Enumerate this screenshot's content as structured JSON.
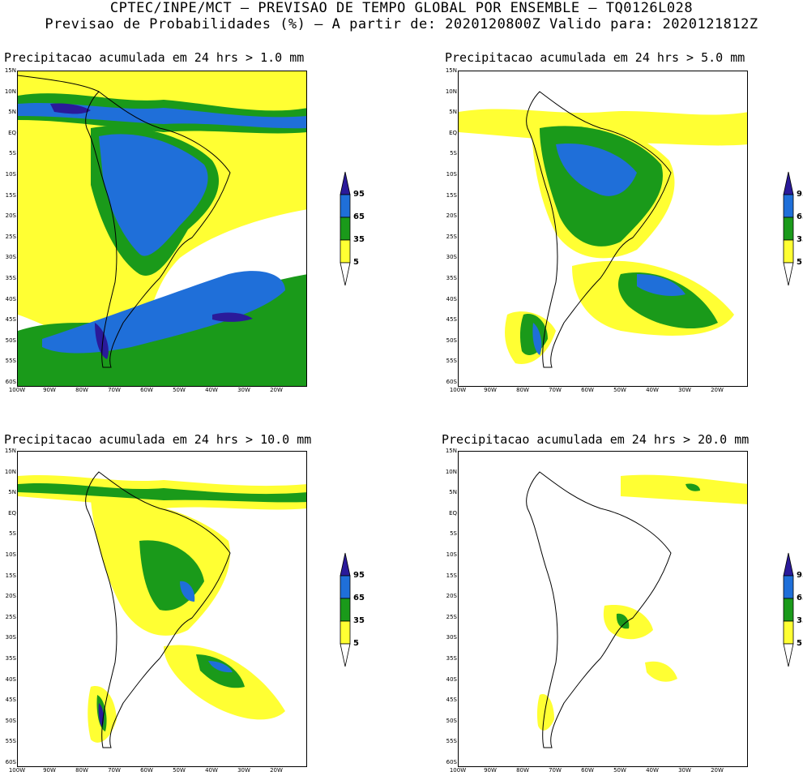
{
  "header": {
    "line1": "CPTEC/INPE/MCT — PREVISAO DE TEMPO GLOBAL POR ENSEMBLE — TQ0126L028",
    "line2": "Previsao de Probabilidades (%) —  A partir de: 2020120800Z  Valido para: 2020121812Z"
  },
  "panels": [
    {
      "title": "Precipitacao acumulada em 24 hrs > 1.0 mm"
    },
    {
      "title": "Precipitacao acumulada em 24 hrs > 5.0 mm"
    },
    {
      "title": "Precipitacao acumulada em 24 hrs > 10.0 mm"
    },
    {
      "title": "Precipitacao acumulada em 24 hrs > 20.0 mm"
    }
  ],
  "lat_labels": [
    "15N",
    "10N",
    "5N",
    "EQ",
    "5S",
    "10S",
    "15S",
    "20S",
    "25S",
    "30S",
    "35S",
    "40S",
    "45S",
    "50S",
    "55S",
    "60S"
  ],
  "lon_labels": [
    "100W",
    "90W",
    "80W",
    "70W",
    "60W",
    "50W",
    "40W",
    "30W",
    "20W"
  ],
  "colorbar": {
    "levels": [
      "95",
      "65",
      "35",
      "5"
    ],
    "colors": [
      "#2a1a9a",
      "#1f6fd9",
      "#1a9a1a",
      "#ffff33"
    ]
  }
}
